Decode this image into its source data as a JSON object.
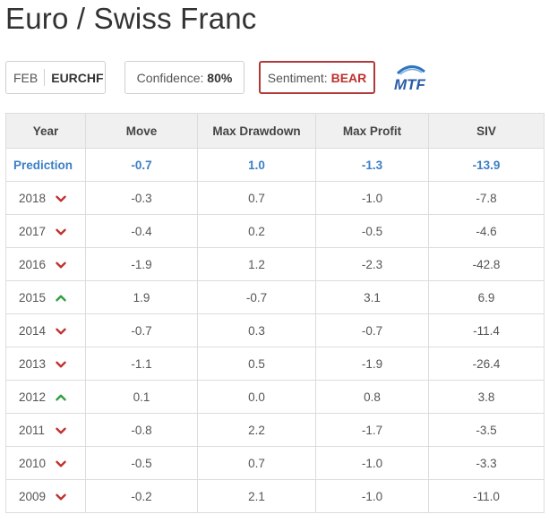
{
  "page": {
    "title": "Euro / Swiss Franc"
  },
  "chips": {
    "month": "FEB",
    "symbol": "EURCHF",
    "confidence_label": "Confidence:",
    "confidence_value": "80%",
    "sentiment_label": "Sentiment:",
    "sentiment_value": "BEAR"
  },
  "logo": {
    "text": "MTF",
    "icon": "mtf-logo-icon"
  },
  "colors": {
    "up": "#2e9e3e",
    "down": "#c0302d",
    "prediction": "#3c7fc4",
    "sentiment_border": "#b03a3a"
  },
  "table": {
    "headers": [
      "Year",
      "Move",
      "Max Drawdown",
      "Max Profit",
      "SIV"
    ],
    "prediction": {
      "label": "Prediction",
      "move": "-0.7",
      "max_drawdown": "1.0",
      "max_profit": "-1.3",
      "siv": "-13.9"
    },
    "rows": [
      {
        "year": "2018",
        "direction": "down",
        "move": "-0.3",
        "max_drawdown": "0.7",
        "max_profit": "-1.0",
        "siv": "-7.8"
      },
      {
        "year": "2017",
        "direction": "down",
        "move": "-0.4",
        "max_drawdown": "0.2",
        "max_profit": "-0.5",
        "siv": "-4.6"
      },
      {
        "year": "2016",
        "direction": "down",
        "move": "-1.9",
        "max_drawdown": "1.2",
        "max_profit": "-2.3",
        "siv": "-42.8"
      },
      {
        "year": "2015",
        "direction": "up",
        "move": "1.9",
        "max_drawdown": "-0.7",
        "max_profit": "3.1",
        "siv": "6.9"
      },
      {
        "year": "2014",
        "direction": "down",
        "move": "-0.7",
        "max_drawdown": "0.3",
        "max_profit": "-0.7",
        "siv": "-11.4"
      },
      {
        "year": "2013",
        "direction": "down",
        "move": "-1.1",
        "max_drawdown": "0.5",
        "max_profit": "-1.9",
        "siv": "-26.4"
      },
      {
        "year": "2012",
        "direction": "up",
        "move": "0.1",
        "max_drawdown": "0.0",
        "max_profit": "0.8",
        "siv": "3.8"
      },
      {
        "year": "2011",
        "direction": "down",
        "move": "-0.8",
        "max_drawdown": "2.2",
        "max_profit": "-1.7",
        "siv": "-3.5"
      },
      {
        "year": "2010",
        "direction": "down",
        "move": "-0.5",
        "max_drawdown": "0.7",
        "max_profit": "-1.0",
        "siv": "-3.3"
      },
      {
        "year": "2009",
        "direction": "down",
        "move": "-0.2",
        "max_drawdown": "2.1",
        "max_profit": "-1.0",
        "siv": "-11.0"
      }
    ]
  }
}
